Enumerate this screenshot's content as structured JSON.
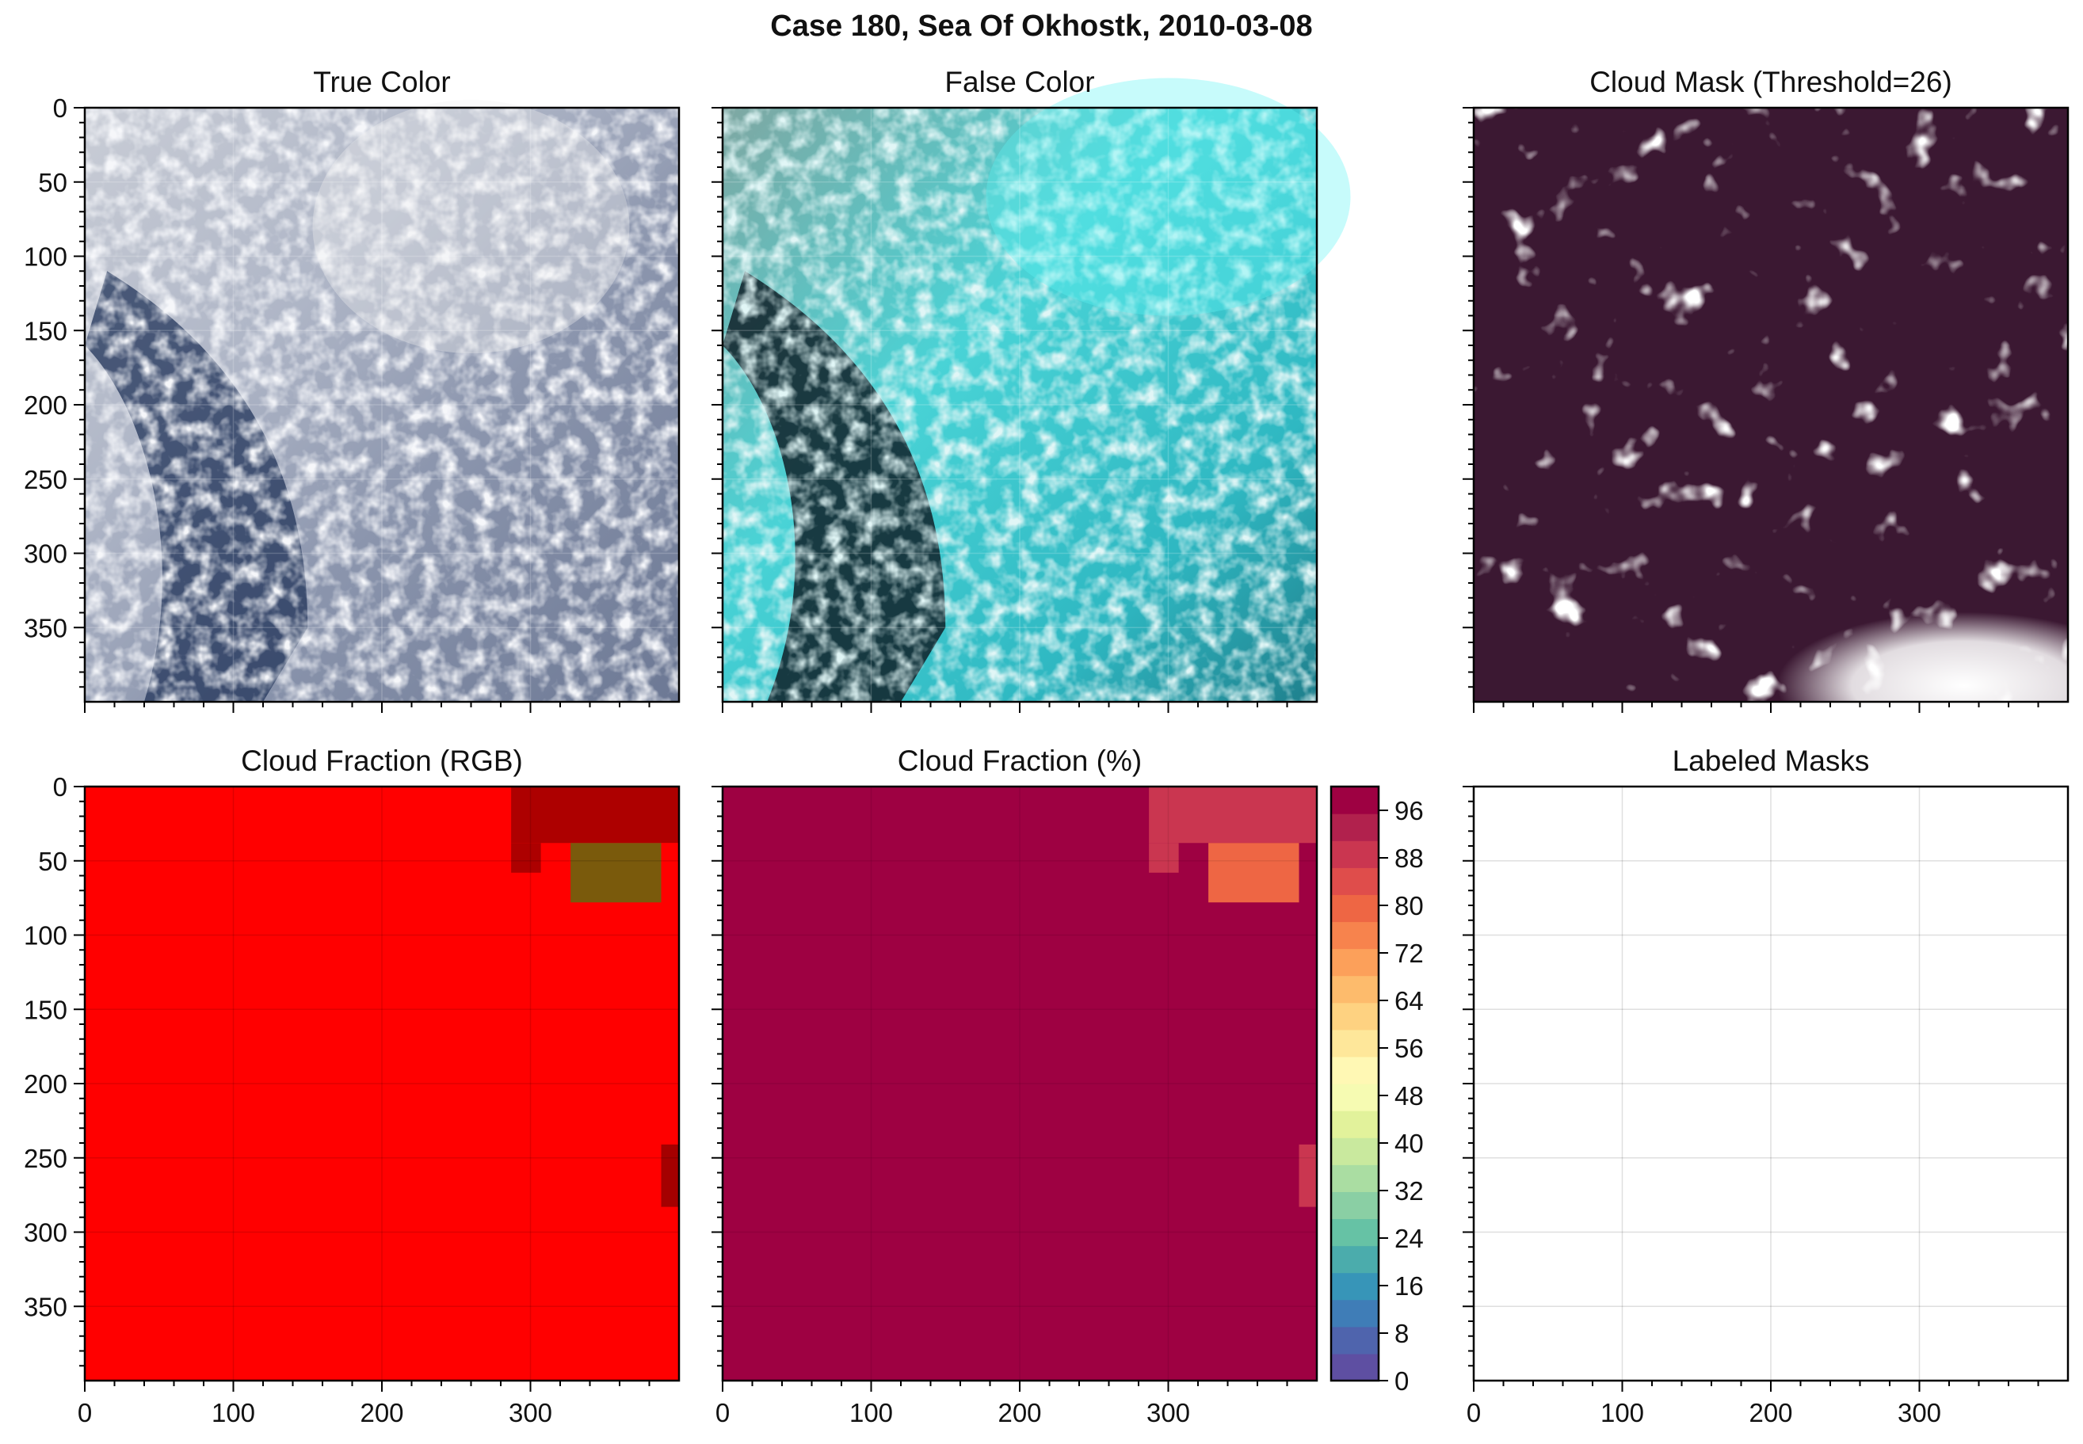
{
  "figure": {
    "suptitle": "Case 180, Sea Of Okhostk, 2010-03-08"
  },
  "colors": {
    "mask_background": "#3b1832",
    "mask_foreground": "#ffffff",
    "cf_rgb_base": "#ff0000",
    "cf_pct_base": "#9b0040",
    "grid": "#d0d0d0",
    "axis": "#000000"
  },
  "chart_data": [
    {
      "type": "heatmap",
      "panel": "true-color",
      "title": "True Color",
      "image": "satellite true-color composite: open-cell marine stratocumulus over dark navy water",
      "xlim": [
        0,
        400
      ],
      "ylim": [
        400,
        0
      ],
      "yticks": [
        0,
        50,
        100,
        150,
        200,
        250,
        300,
        350
      ],
      "xtick_labels_shown": false
    },
    {
      "type": "heatmap",
      "panel": "false-color",
      "title": "False Color",
      "image": "false-color composite: cyan sea ice / clouds, dark water channels",
      "xlim": [
        0,
        400
      ],
      "ylim": [
        400,
        0
      ],
      "xtick_labels_shown": false
    },
    {
      "type": "heatmap",
      "panel": "cloud-mask",
      "title": "Cloud Mask (Threshold=26)",
      "image": "binary mask: white = cloud-free pixels, dark purple = cloud",
      "xlim": [
        0,
        400
      ],
      "ylim": [
        400,
        0
      ],
      "xtick_labels_shown": false
    },
    {
      "type": "heatmap",
      "panel": "cloud-fraction-rgb",
      "title": "Cloud Fraction (RGB)",
      "xlim": [
        0,
        400
      ],
      "ylim": [
        400,
        0
      ],
      "xticks": [
        0,
        100,
        200,
        300
      ],
      "yticks": [
        0,
        50,
        100,
        150,
        200,
        250,
        300,
        350
      ],
      "base_color": "#ff0000",
      "patches": [
        {
          "x0": 287,
          "x1": 400,
          "y0": 0,
          "y1": 38,
          "color": "#ad0000"
        },
        {
          "x0": 287,
          "x1": 307,
          "y0": 38,
          "y1": 58,
          "color": "#ad0000"
        },
        {
          "x0": 327,
          "x1": 388,
          "y0": 38,
          "y1": 78,
          "color": "#7a5a0c"
        },
        {
          "x0": 388,
          "x1": 400,
          "y0": 38,
          "y1": 78,
          "color": "#ff0000"
        },
        {
          "x0": 388,
          "x1": 400,
          "y0": 241,
          "y1": 283,
          "color": "#a40000"
        }
      ]
    },
    {
      "type": "heatmap",
      "panel": "cloud-fraction-pct",
      "title": "Cloud Fraction (%)",
      "xlim": [
        0,
        400
      ],
      "ylim": [
        400,
        0
      ],
      "xticks": [
        0,
        100,
        200,
        300
      ],
      "base_value": 100,
      "patches": [
        {
          "x0": 287,
          "x1": 400,
          "y0": 0,
          "y1": 38,
          "value": 90
        },
        {
          "x0": 287,
          "x1": 307,
          "y0": 38,
          "y1": 58,
          "value": 90
        },
        {
          "x0": 327,
          "x1": 388,
          "y0": 38,
          "y1": 78,
          "value": 80
        },
        {
          "x0": 388,
          "x1": 400,
          "y0": 241,
          "y1": 283,
          "value": 90
        }
      ],
      "colorbar": {
        "ticks": [
          0,
          8,
          16,
          24,
          32,
          40,
          48,
          56,
          64,
          72,
          80,
          88,
          96
        ],
        "range": [
          0,
          100
        ],
        "levels": [
          "#5e4fa2",
          "#4f64ad",
          "#3f7db7",
          "#3795b8",
          "#4bacac",
          "#66c2a5",
          "#8acfa4",
          "#aadda2",
          "#c9e99e",
          "#e2f29b",
          "#f6fbb2",
          "#fff8b4",
          "#fee79a",
          "#fed281",
          "#fdbb6c",
          "#fca05a",
          "#f7834d",
          "#ee6644",
          "#df4d4b",
          "#ca3650",
          "#b1214d",
          "#9e0142"
        ]
      }
    },
    {
      "type": "heatmap",
      "panel": "labeled-masks",
      "title": "Labeled Masks",
      "xlim": [
        0,
        400
      ],
      "ylim": [
        400,
        0
      ],
      "xticks": [
        0,
        100,
        200,
        300
      ],
      "empty": true
    }
  ]
}
